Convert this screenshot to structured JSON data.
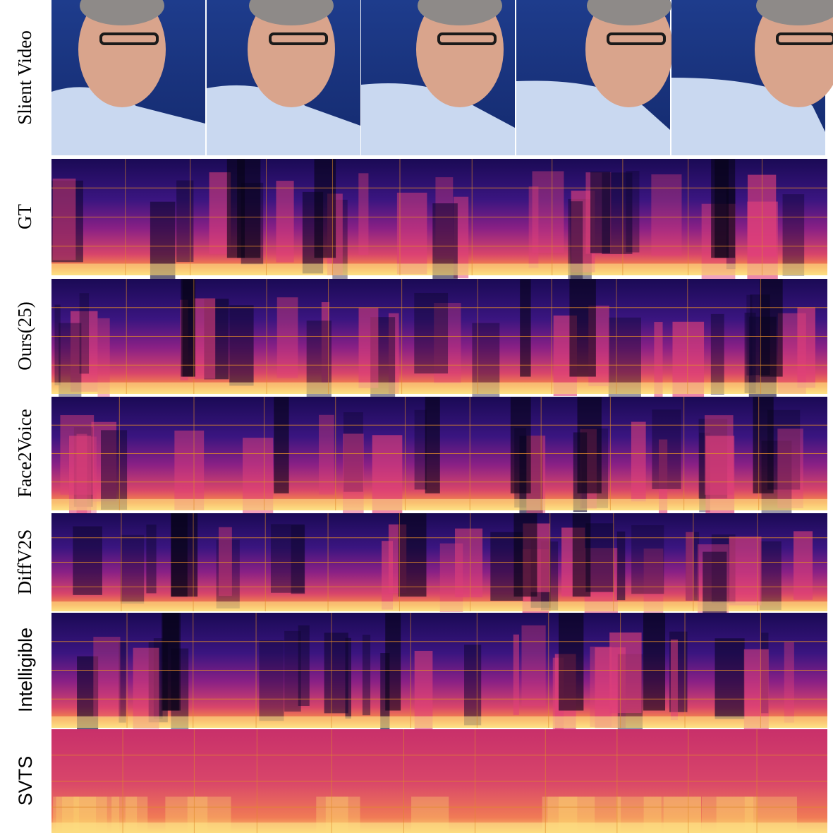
{
  "rows": [
    "Slient Video",
    "GT",
    "Ours(25)",
    "Face2Voice",
    "DiffV2S",
    "Intelligible",
    "SVTS"
  ]
}
